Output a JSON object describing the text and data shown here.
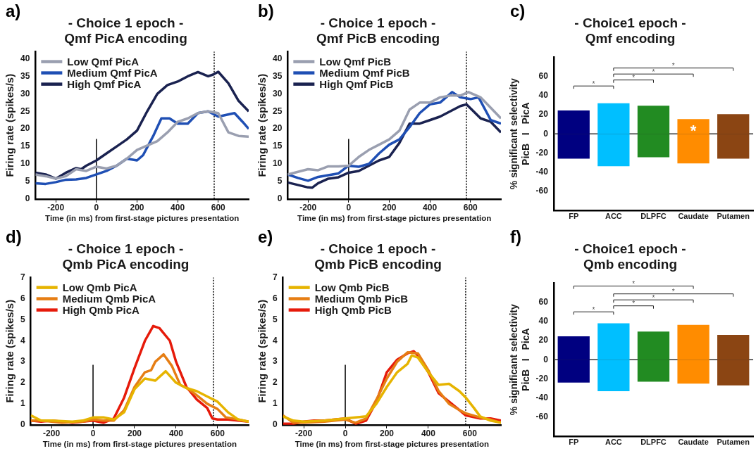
{
  "chart_data": [
    {
      "type": "line",
      "title": "- Choice 1 epoch -",
      "subtitle": "Qmf PicA encoding",
      "xlabel": "Time (in ms) from first-stage pictures presentation",
      "ylabel": "Firing rate (spikes/s)",
      "annotations": [
        "a)"
      ],
      "xlim": [
        -300,
        750
      ],
      "xticks": [
        -200,
        0,
        200,
        400,
        600
      ],
      "ylim": [
        0,
        42
      ],
      "yticks": [
        0,
        5,
        10,
        15,
        20,
        25,
        30,
        35,
        40
      ],
      "grid": false,
      "legend": "top left",
      "marker": "none",
      "line_style": "solid",
      "ref_lines": [
        {
          "axis": "x",
          "value": 0,
          "label": null,
          "color": "#000000",
          "line_style": "solid"
        },
        {
          "axis": "x",
          "value": 580,
          "label": null,
          "color": "#000000",
          "line_style": "dotted"
        }
      ],
      "series": [
        {
          "name": "Low Qmf PicA",
          "color": "#9a9fb0",
          "x": [
            -300,
            -250,
            -200,
            -150,
            -100,
            -50,
            0,
            50,
            100,
            150,
            200,
            240,
            300,
            350,
            400,
            450,
            500,
            550,
            600,
            650,
            700,
            750
          ],
          "values": [
            7,
            6.5,
            5.8,
            6.5,
            8.5,
            8,
            9.2,
            8.7,
            9.5,
            11.5,
            14,
            15,
            16.5,
            19,
            22,
            23,
            24.5,
            25,
            24.5,
            19,
            18,
            17.8
          ]
        },
        {
          "name": "Medium Qmf PicA",
          "color": "#1f4fb4",
          "x": [
            -300,
            -250,
            -200,
            -150,
            -100,
            -50,
            0,
            50,
            100,
            150,
            200,
            230,
            280,
            320,
            360,
            400,
            450,
            500,
            550,
            600,
            680,
            720,
            750
          ],
          "values": [
            4.5,
            4.3,
            4.8,
            5.5,
            5.6,
            6,
            7,
            8,
            9.5,
            11.5,
            11,
            12.5,
            18,
            23,
            23,
            21.5,
            21.5,
            24.5,
            25,
            23.5,
            24.5,
            22,
            20
          ]
        },
        {
          "name": "High Qmf PicA",
          "color": "#1a2250",
          "x": [
            -300,
            -250,
            -200,
            -150,
            -100,
            -75,
            -50,
            0,
            50,
            100,
            150,
            200,
            250,
            300,
            350,
            400,
            450,
            500,
            550,
            575,
            600,
            650,
            700,
            750
          ],
          "values": [
            7.5,
            7,
            5.8,
            7.5,
            8.8,
            8.5,
            9.5,
            11,
            13,
            15,
            17,
            19.5,
            25,
            30,
            32.5,
            33.5,
            35,
            36.2,
            35,
            35.5,
            36.3,
            33,
            28,
            25
          ]
        }
      ]
    },
    {
      "type": "line",
      "title": "- Choice 1 epoch -",
      "subtitle": "Qmf PicB encoding",
      "xlabel": "Time (in ms) from first-stage pictures presentation",
      "ylabel": "Firing rate (spikes/s)",
      "annotations": [
        "b)"
      ],
      "xlim": [
        -300,
        750
      ],
      "xticks": [
        -200,
        0,
        200,
        400,
        600
      ],
      "ylim": [
        0,
        42
      ],
      "yticks": [
        0,
        5,
        10,
        15,
        20,
        25,
        30,
        35,
        40
      ],
      "grid": false,
      "legend": "top left",
      "marker": "none",
      "line_style": "solid",
      "ref_lines": [
        {
          "axis": "x",
          "value": 0,
          "label": null,
          "color": "#000000",
          "line_style": "solid"
        },
        {
          "axis": "x",
          "value": 580,
          "label": null,
          "color": "#000000",
          "line_style": "dotted"
        }
      ],
      "series": [
        {
          "name": "Low Qmf PicB",
          "color": "#9a9fb0",
          "x": [
            -300,
            -200,
            -150,
            -100,
            -50,
            0,
            50,
            100,
            150,
            200,
            250,
            300,
            350,
            400,
            450,
            500,
            550,
            590,
            650,
            700,
            750
          ],
          "values": [
            7,
            8.5,
            8.2,
            9.3,
            9.3,
            9.5,
            12,
            14,
            15.5,
            17,
            19.5,
            25.5,
            27.5,
            27.5,
            29,
            29.5,
            29.5,
            30.5,
            29,
            26,
            23
          ]
        },
        {
          "name": "Medium Qmf PicB",
          "color": "#1f4fb4",
          "x": [
            -300,
            -250,
            -200,
            -150,
            -100,
            -50,
            0,
            50,
            100,
            150,
            200,
            250,
            300,
            350,
            400,
            450,
            510,
            550,
            600,
            640,
            700,
            750
          ],
          "values": [
            7,
            6,
            5.2,
            6.3,
            6.8,
            7.3,
            9.5,
            9.2,
            10,
            13,
            15.5,
            17,
            20.5,
            24.5,
            27,
            27.5,
            30.5,
            29,
            28.5,
            29,
            22.5,
            21.5
          ]
        },
        {
          "name": "High Qmf PicB",
          "color": "#1a2250",
          "x": [
            -300,
            -250,
            -200,
            -180,
            -150,
            -100,
            -50,
            0,
            50,
            100,
            150,
            200,
            250,
            300,
            350,
            400,
            450,
            500,
            550,
            580,
            650,
            700,
            750
          ],
          "values": [
            4.7,
            4,
            3.3,
            3.2,
            4.5,
            5.8,
            6.2,
            7.5,
            8,
            9.5,
            11,
            12,
            16,
            21.5,
            21.5,
            22.5,
            23.5,
            25,
            26.5,
            27,
            23,
            22,
            19
          ]
        }
      ]
    },
    {
      "type": "bar",
      "title": "- Choice1 epoch -",
      "subtitle": "Qmf encoding",
      "ylabel": "% significant selectivity\nPicB   I   PicA",
      "annotations": [
        "c)",
        "*",
        "*",
        "*",
        "*",
        {
          "text": "*",
          "x": "Caudate",
          "y": 15.5
        }
      ],
      "categories": [
        "FP",
        "ACC",
        "DLPFC",
        "Caudate",
        "Putamen"
      ],
      "stacked": true,
      "ylim": [
        -80,
        80
      ],
      "yticks": [
        -60,
        -40,
        -20,
        0,
        20,
        40,
        60
      ],
      "grid": false,
      "legend": false,
      "ref_lines": [
        {
          "axis": "y",
          "value": 0,
          "label": null,
          "color": "#333333",
          "line_style": "solid"
        }
      ],
      "series": [
        {
          "colors": [
            "#000080",
            "#00bfff",
            "#228b22",
            "#ff8c00",
            "#8b4513"
          ],
          "values": [
            24.5,
            32,
            29.5,
            15.5,
            20.5
          ]
        },
        {
          "colors": [
            "#000080",
            "#00bfff",
            "#228b22",
            "#ff8c00",
            "#8b4513"
          ],
          "values": [
            -26,
            -34,
            -24.5,
            -31,
            -26
          ]
        }
      ]
    },
    {
      "type": "line",
      "title": "- Choice 1 epoch -",
      "subtitle": "Qmb PicA encoding",
      "xlabel": "Time (in ms) from first-stage pictures presentation",
      "ylabel": "Firing rate (spikes/s)",
      "annotations": [
        "d)"
      ],
      "xlim": [
        -300,
        750
      ],
      "xticks": [
        -200,
        0,
        200,
        400,
        600
      ],
      "ylim": [
        0,
        7
      ],
      "yticks": [
        0,
        1,
        2,
        3,
        4,
        5,
        6,
        7
      ],
      "grid": false,
      "legend": "top left",
      "marker": "none",
      "line_style": "solid",
      "ref_lines": [
        {
          "axis": "x",
          "value": 0,
          "label": null,
          "color": "#000000",
          "line_style": "solid"
        },
        {
          "axis": "x",
          "value": 580,
          "label": null,
          "color": "#000000",
          "line_style": "dotted"
        }
      ],
      "series": [
        {
          "name": "Low Qmb PicA",
          "color": "#e6b400",
          "x": [
            -300,
            -250,
            -200,
            -100,
            -50,
            0,
            50,
            100,
            150,
            200,
            250,
            300,
            350,
            400,
            450,
            500,
            550,
            600,
            650,
            700,
            750
          ],
          "values": [
            0.45,
            0.2,
            0.2,
            0.15,
            0.2,
            0.35,
            0.35,
            0.25,
            0.6,
            1.7,
            2.2,
            2.1,
            2.55,
            2,
            1.75,
            1.6,
            1.35,
            1.1,
            0.6,
            0.25,
            0.15
          ]
        },
        {
          "name": "Medium Qmb PicA",
          "color": "#e67e14",
          "x": [
            -300,
            -250,
            -150,
            -50,
            0,
            50,
            100,
            150,
            200,
            250,
            280,
            300,
            340,
            380,
            420,
            460,
            500,
            550,
            600,
            640,
            700,
            750
          ],
          "values": [
            0.2,
            0.2,
            0.1,
            0.15,
            0.25,
            0.2,
            0.2,
            0.7,
            1.8,
            2.5,
            2.6,
            3,
            3.35,
            2.8,
            1.9,
            1.7,
            1.4,
            1,
            0.75,
            0.35,
            0.25,
            0.15
          ]
        },
        {
          "name": "High Qmb PicA",
          "color": "#e61a0a",
          "x": [
            -300,
            -250,
            -200,
            -150,
            -100,
            -50,
            0,
            50,
            100,
            150,
            200,
            250,
            290,
            320,
            370,
            400,
            450,
            500,
            550,
            575,
            600,
            650,
            700,
            750
          ],
          "values": [
            0.2,
            0.15,
            0.2,
            0.15,
            0.1,
            0.15,
            0.2,
            0.1,
            0.3,
            1.3,
            2.7,
            4,
            4.7,
            4.6,
            4,
            3,
            1.8,
            1.2,
            0.8,
            0.3,
            0.25,
            0.25,
            0.2,
            0.15
          ]
        }
      ]
    },
    {
      "type": "line",
      "title": "- Choice 1 epoch -",
      "subtitle": "Qmb PicB encoding",
      "xlabel": "Time (in ms) from first-stage pictures presentation",
      "ylabel": "Firing rate (spikes/s)",
      "annotations": [
        "e)"
      ],
      "xlim": [
        -300,
        750
      ],
      "xticks": [
        -200,
        0,
        200,
        400,
        600
      ],
      "ylim": [
        0,
        7
      ],
      "yticks": [
        0,
        1,
        2,
        3,
        4,
        5,
        6,
        7
      ],
      "grid": false,
      "legend": "top left",
      "marker": "none",
      "line_style": "solid",
      "ref_lines": [
        {
          "axis": "x",
          "value": 0,
          "label": null,
          "color": "#000000",
          "line_style": "solid"
        },
        {
          "axis": "x",
          "value": 580,
          "label": null,
          "color": "#000000",
          "line_style": "dotted"
        }
      ],
      "series": [
        {
          "name": "Low Qmb PicB",
          "color": "#e6b400",
          "x": [
            -300,
            -250,
            -200,
            -100,
            0,
            50,
            100,
            150,
            200,
            250,
            300,
            320,
            350,
            400,
            450,
            500,
            550,
            580,
            620,
            650,
            700,
            750
          ],
          "values": [
            0.4,
            0.2,
            0.15,
            0.2,
            0.3,
            0.35,
            0.4,
            1,
            1.8,
            2.5,
            2.9,
            3.3,
            3.2,
            2.5,
            1.9,
            1.95,
            1.6,
            1.3,
            0.8,
            0.4,
            0.2,
            0.1
          ]
        },
        {
          "name": "Medium Qmb PicB",
          "color": "#e67e14",
          "x": [
            -300,
            -250,
            -200,
            -100,
            0,
            50,
            100,
            150,
            200,
            250,
            300,
            350,
            400,
            450,
            500,
            550,
            580,
            650,
            700,
            750
          ],
          "values": [
            0.45,
            0.1,
            0.1,
            0.15,
            0.25,
            0.1,
            0.3,
            1.2,
            2.2,
            3,
            3.45,
            3.4,
            2.6,
            1.6,
            1,
            0.7,
            0.55,
            0.35,
            0.25,
            0.1
          ]
        },
        {
          "name": "High Qmb PicB",
          "color": "#e61a0a",
          "x": [
            -300,
            -250,
            -200,
            -150,
            -100,
            -50,
            0,
            50,
            100,
            150,
            200,
            250,
            300,
            330,
            350,
            400,
            450,
            500,
            550,
            580,
            650,
            700,
            750
          ],
          "values": [
            0.05,
            0.05,
            0.15,
            0.2,
            0.2,
            0.25,
            0.3,
            0.05,
            0.2,
            1.1,
            2.5,
            3.1,
            3.4,
            3.5,
            3.3,
            2.5,
            1.5,
            1.1,
            0.7,
            0.45,
            0.3,
            0.3,
            0.2
          ]
        }
      ]
    },
    {
      "type": "bar",
      "title": "- Choice1 epoch -",
      "subtitle": "Qmb encoding",
      "ylabel": "% significant selectivity\nPicB   I   PicA",
      "annotations": [
        "f)",
        "*",
        "*",
        "*",
        "*",
        "*"
      ],
      "categories": [
        "FP",
        "ACC",
        "DLPFC",
        "Caudate",
        "Putamen"
      ],
      "stacked": true,
      "ylim": [
        -80,
        80
      ],
      "yticks": [
        -60,
        -40,
        -20,
        0,
        20,
        40,
        60
      ],
      "grid": false,
      "legend": false,
      "ref_lines": [
        {
          "axis": "y",
          "value": 0,
          "label": null,
          "color": "#333333",
          "line_style": "solid"
        }
      ],
      "series": [
        {
          "colors": [
            "#000080",
            "#00bfff",
            "#228b22",
            "#ff8c00",
            "#8b4513"
          ],
          "values": [
            24.5,
            38,
            29.5,
            36.5,
            26
          ]
        },
        {
          "colors": [
            "#000080",
            "#00bfff",
            "#228b22",
            "#ff8c00",
            "#8b4513"
          ],
          "values": [
            -24,
            -33,
            -23,
            -25,
            -27
          ]
        }
      ]
    }
  ]
}
